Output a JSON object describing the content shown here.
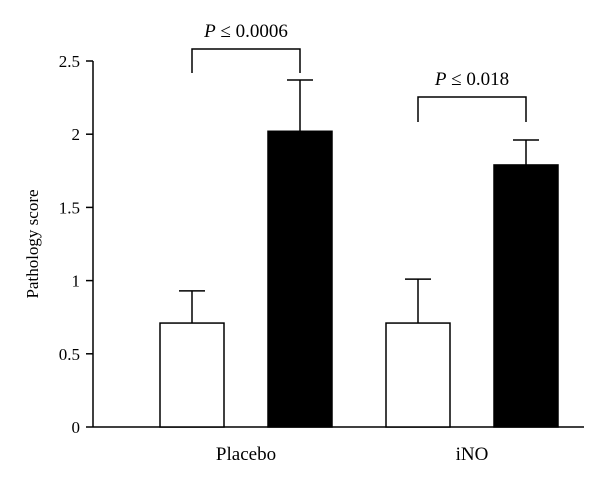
{
  "chart_data": {
    "type": "bar",
    "ylabel": "Pathology score",
    "ylim": [
      0,
      2.5
    ],
    "yticks": [
      0,
      0.5,
      1,
      1.5,
      2,
      2.5
    ],
    "ytick_labels": [
      "0",
      "0.5",
      "1",
      "1.5",
      "2",
      "2.5"
    ],
    "categories": [
      "Placebo",
      "iNO"
    ],
    "series": [
      {
        "color": "#ffffff",
        "values": [
          0.71,
          0.71
        ],
        "errors": [
          0.22,
          0.3
        ]
      },
      {
        "color": "#000000",
        "values": [
          2.02,
          1.79
        ],
        "errors": [
          0.35,
          0.17
        ]
      }
    ],
    "annotations": [
      {
        "category": "Placebo",
        "p_symbol": "P",
        "text": " ≤ 0.0006"
      },
      {
        "category": "iNO",
        "p_symbol": "P",
        "text": " ≤ 0.018"
      }
    ],
    "grid": false,
    "legend": "none"
  }
}
